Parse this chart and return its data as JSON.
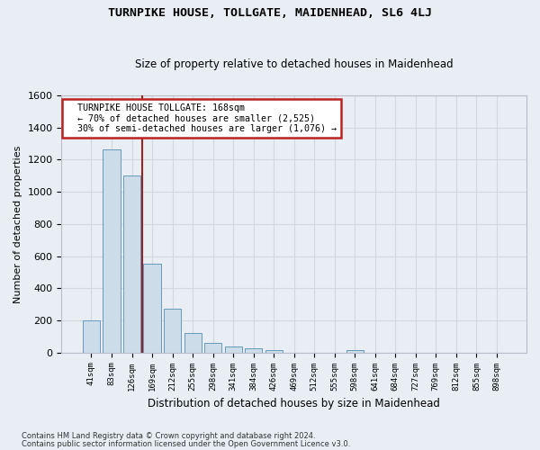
{
  "title": "TURNPIKE HOUSE, TOLLGATE, MAIDENHEAD, SL6 4LJ",
  "subtitle": "Size of property relative to detached houses in Maidenhead",
  "xlabel": "Distribution of detached houses by size in Maidenhead",
  "ylabel": "Number of detached properties",
  "footnote1": "Contains HM Land Registry data © Crown copyright and database right 2024.",
  "footnote2": "Contains public sector information licensed under the Open Government Licence v3.0.",
  "bar_labels": [
    "41sqm",
    "83sqm",
    "126sqm",
    "169sqm",
    "212sqm",
    "255sqm",
    "298sqm",
    "341sqm",
    "384sqm",
    "426sqm",
    "469sqm",
    "512sqm",
    "555sqm",
    "598sqm",
    "641sqm",
    "684sqm",
    "727sqm",
    "769sqm",
    "812sqm",
    "855sqm",
    "898sqm"
  ],
  "bar_values": [
    198,
    1265,
    1100,
    555,
    270,
    120,
    60,
    35,
    25,
    15,
    0,
    0,
    0,
    15,
    0,
    0,
    0,
    0,
    0,
    0,
    0
  ],
  "bar_color": "#ccdce8",
  "bar_edge_color": "#6699bb",
  "grid_color": "#d0d8e0",
  "bg_color": "#e8eef4",
  "vline_color": "#992222",
  "annotation_text": "  TURNPIKE HOUSE TOLLGATE: 168sqm\n  ← 70% of detached houses are smaller (2,525)\n  30% of semi-detached houses are larger (1,076) →",
  "annotation_box_color": "#bb2222",
  "ylim": [
    0,
    1600
  ],
  "yticks": [
    0,
    200,
    400,
    600,
    800,
    1000,
    1200,
    1400,
    1600
  ]
}
